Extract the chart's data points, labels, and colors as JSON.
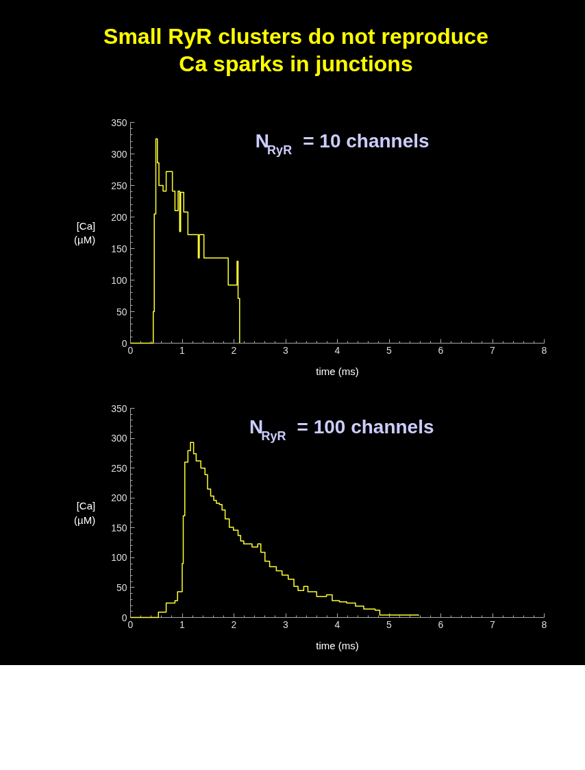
{
  "chart_data": [
    {
      "type": "step",
      "title": "Small RyR clusters do not reproduce\nCa sparks in junctions",
      "xlabel": "time (ms)",
      "ylabel": "[Ca]\n(µM)",
      "annotations": [
        "N$_{RyR}$ = 10 channels"
      ],
      "xlim": [
        0,
        8
      ],
      "xticks": [
        0,
        1,
        2,
        3,
        4,
        5,
        6,
        7,
        8
      ],
      "ylim": [
        0,
        350
      ],
      "yticks": [
        0,
        50,
        100,
        150,
        200,
        250,
        300,
        350
      ],
      "series": [
        {
          "color": "#ffff33",
          "x": [
            0,
            0.44,
            0.46,
            0.49,
            0.52,
            0.55,
            0.63,
            0.69,
            0.81,
            0.86,
            0.92,
            0.95,
            0.97,
            1.03,
            1.11,
            1.31,
            1.33,
            1.42,
            1.89,
            2.06,
            2.08,
            2.11
          ],
          "values": [
            0,
            50,
            205,
            324,
            286,
            250,
            241,
            272,
            241,
            210,
            241,
            177,
            239,
            208,
            172,
            135,
            172,
            135,
            92,
            130,
            71,
            0
          ]
        }
      ]
    },
    {
      "type": "step",
      "xlabel": "time (ms)",
      "ylabel": "[Ca]\n(µM)",
      "annotations": [
        "N$_{RyR}$ = 100 channels"
      ],
      "xlim": [
        0,
        8
      ],
      "xticks": [
        0,
        1,
        2,
        3,
        4,
        5,
        6,
        7,
        8
      ],
      "ylim": [
        0,
        350
      ],
      "yticks": [
        0,
        50,
        100,
        150,
        200,
        250,
        300,
        350
      ],
      "series": [
        {
          "color": "#ffff33",
          "x": [
            0,
            0.54,
            0.69,
            0.86,
            0.91,
            1.0,
            1.02,
            1.05,
            1.11,
            1.16,
            1.22,
            1.27,
            1.36,
            1.44,
            1.49,
            1.55,
            1.61,
            1.66,
            1.72,
            1.77,
            1.83,
            1.91,
            1.99,
            2.08,
            2.13,
            2.19,
            2.35,
            2.46,
            2.52,
            2.6,
            2.69,
            2.82,
            2.93,
            3.05,
            3.16,
            3.24,
            3.35,
            3.43,
            3.6,
            3.79,
            3.9,
            4.04,
            4.18,
            4.35,
            4.51,
            4.73,
            4.82,
            5.58
          ],
          "values": [
            0,
            9,
            24,
            28,
            43,
            90,
            170,
            260,
            279,
            293,
            274,
            262,
            250,
            239,
            215,
            203,
            196,
            191,
            189,
            180,
            165,
            151,
            146,
            137,
            128,
            123,
            118,
            123,
            109,
            94,
            85,
            78,
            71,
            64,
            52,
            45,
            52,
            43,
            35,
            38,
            28,
            26,
            24,
            19,
            14,
            12,
            4,
            4
          ]
        }
      ]
    }
  ]
}
